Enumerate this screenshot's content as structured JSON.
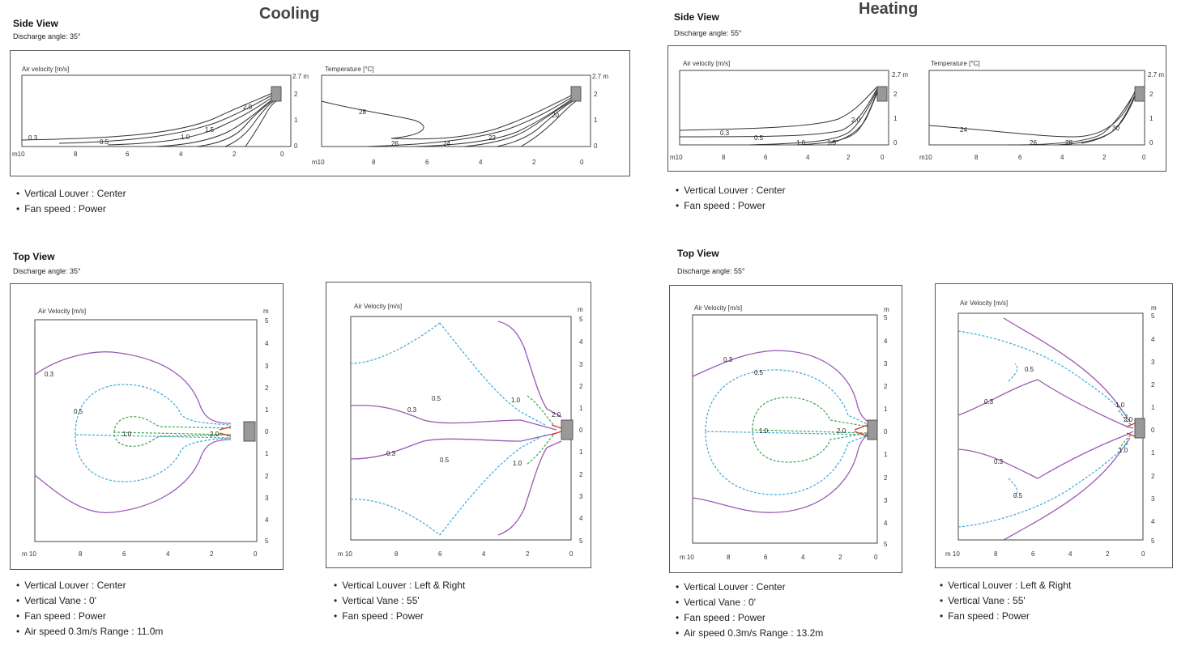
{
  "cooling": {
    "title": "Cooling",
    "side": {
      "title": "Side View",
      "angle": "Discharge angle: 35°",
      "velocity_label": "Air velocity [m/s]",
      "temperature_label": "Temperature [°C]",
      "bullets": [
        "Vertical Louver : Center",
        "Fan speed : Power"
      ]
    },
    "top": {
      "title": "Top View",
      "angle": "Discharge angle: 35°",
      "left": {
        "label": "Air Velocity [m/s]",
        "bullets": [
          "Vertical Louver : Center",
          "Vertical Vane : 0'",
          "Fan speed : Power",
          "Air speed 0.3m/s Range : 11.0m"
        ]
      },
      "right": {
        "label": "Air Velocity [m/s]",
        "bullets": [
          "Vertical Louver : Left & Right",
          "Vertical Vane : 55'",
          "Fan speed : Power"
        ]
      }
    }
  },
  "heating": {
    "title": "Heating",
    "side": {
      "title": "Side View",
      "angle": "Discharge angle: 55°",
      "velocity_label": "Air velocity [m/s]",
      "temperature_label": "Temperature [°C]",
      "bullets": [
        "Vertical Louver : Center",
        "Fan speed : Power"
      ]
    },
    "top": {
      "title": "Top View",
      "angle": "Discharge angle: 55°",
      "left": {
        "label": "Air Velocity [m/s]",
        "bullets": [
          "Vertical Louver : Center",
          "Vertical Vane : 0'",
          "Fan speed : Power",
          "Air speed 0.3m/s Range : 13.2m"
        ]
      },
      "right": {
        "label": "Air Velocity [m/s]",
        "bullets": [
          "Vertical Louver : Left & Right",
          "Vertical Vane : 55'",
          "Fan speed : Power"
        ]
      }
    }
  },
  "axes": {
    "side_x_ticks": [
      "m10",
      "8",
      "6",
      "4",
      "2",
      "0"
    ],
    "side_y_ticks": [
      "2.7 m",
      "2",
      "1",
      "0"
    ],
    "top_x_ticks": [
      "m 10",
      "8",
      "6",
      "4",
      "2",
      "0"
    ],
    "top_y_ticks": [
      "m",
      "5",
      "4",
      "3",
      "2",
      "1",
      "0",
      "1",
      "2",
      "3",
      "4",
      "5"
    ]
  },
  "contour_labels": {
    "cool_side_vel": [
      "0.3",
      "0.5",
      "1.0",
      "1.5",
      "2.0"
    ],
    "cool_side_temp": [
      "28",
      "26",
      "24",
      "22",
      "20"
    ],
    "heat_side_vel": [
      "0.3",
      "0.5",
      "1.0",
      "1.5",
      "2.0"
    ],
    "heat_side_temp": [
      "24",
      "26",
      "28",
      "30"
    ],
    "cool_top_left": [
      "0.3",
      "0.5",
      "1.0",
      "2.0"
    ],
    "cool_top_right": [
      "0.3",
      "0.5",
      "1.0",
      "2.0",
      "0.3",
      "0.5",
      "1.0"
    ],
    "heat_top_left": [
      "0.3",
      "0.5",
      "1.0",
      "2.0"
    ],
    "heat_top_right": [
      "0.5",
      "0.3",
      "1.0",
      "2.0",
      "0.3",
      "0.5",
      "1.0"
    ]
  },
  "colors": {
    "v03": "#9b59b6",
    "v05": "#3aa8d8",
    "v10": "#3fa34d",
    "v20": "#e0302a",
    "unit": "#888888"
  }
}
